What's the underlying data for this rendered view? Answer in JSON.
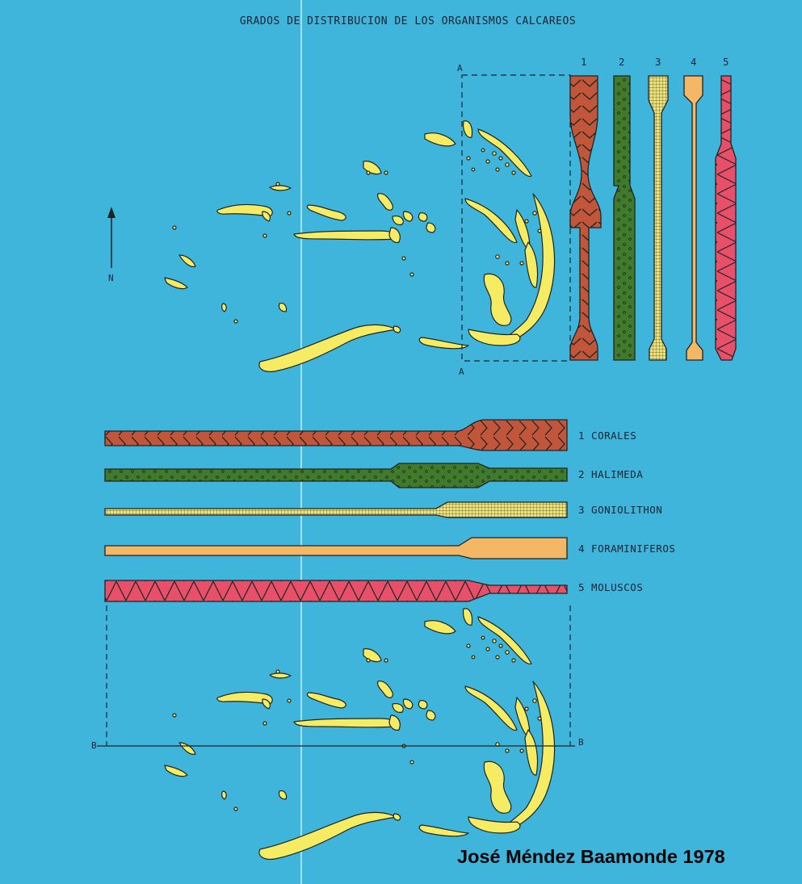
{
  "map": {
    "title": "GRADOS DE DISTRIBUCION DE LOS ORGANISMOS CALCAREOS",
    "north_label": "N",
    "section_a": {
      "label_top": "A",
      "label_bottom": "A"
    },
    "section_b": {
      "label_left": "B",
      "label_right": "B"
    }
  },
  "colors": {
    "sea": "#3fb5dc",
    "land": "#f6ec63",
    "outline": "#1e2424",
    "corales": "#c1563a",
    "halimeda": "#3f7b2a",
    "goniolithon": "#eee27a",
    "foraminiferos": "#f3b765",
    "moluscos": "#e84f69"
  },
  "legend": [
    {
      "number": "1",
      "label": "1 CORALES",
      "pattern": "chevron",
      "color": "#c1563a"
    },
    {
      "number": "2",
      "label": "2 HALIMEDA",
      "pattern": "dots",
      "color": "#3f7b2a"
    },
    {
      "number": "3",
      "label": "3 GONIOLITHON",
      "pattern": "grid",
      "color": "#eee27a"
    },
    {
      "number": "4",
      "label": "4 FORAMINIFEROS",
      "pattern": "plain",
      "color": "#f3b765"
    },
    {
      "number": "5",
      "label": "5 MOLUSCOS",
      "pattern": "zigzag",
      "color": "#e84f69"
    }
  ],
  "credit": "José Méndez Baamonde 1978"
}
